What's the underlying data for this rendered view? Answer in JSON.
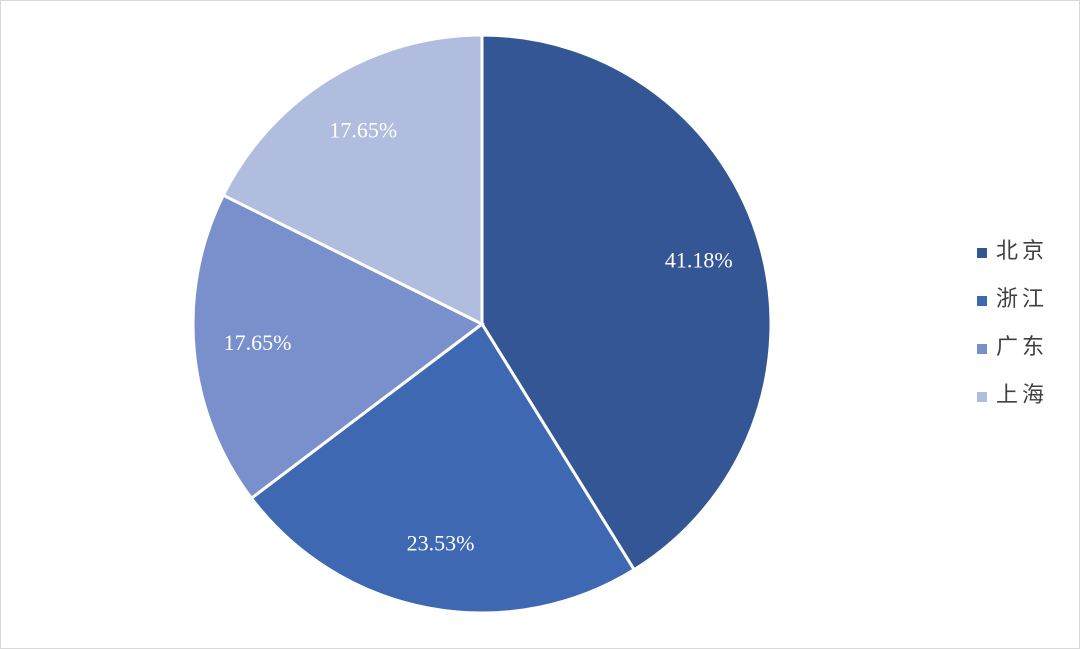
{
  "chart_data": {
    "type": "pie",
    "categories": [
      "北京",
      "浙江",
      "广东",
      "上海"
    ],
    "values": [
      41.18,
      23.53,
      17.65,
      17.65
    ],
    "value_labels": [
      "41.18%",
      "23.53%",
      "17.65%",
      "17.65%"
    ],
    "colors": [
      "#345694",
      "#3f68b2",
      "#7a90cc",
      "#b1bddf"
    ],
    "legend": "right"
  }
}
